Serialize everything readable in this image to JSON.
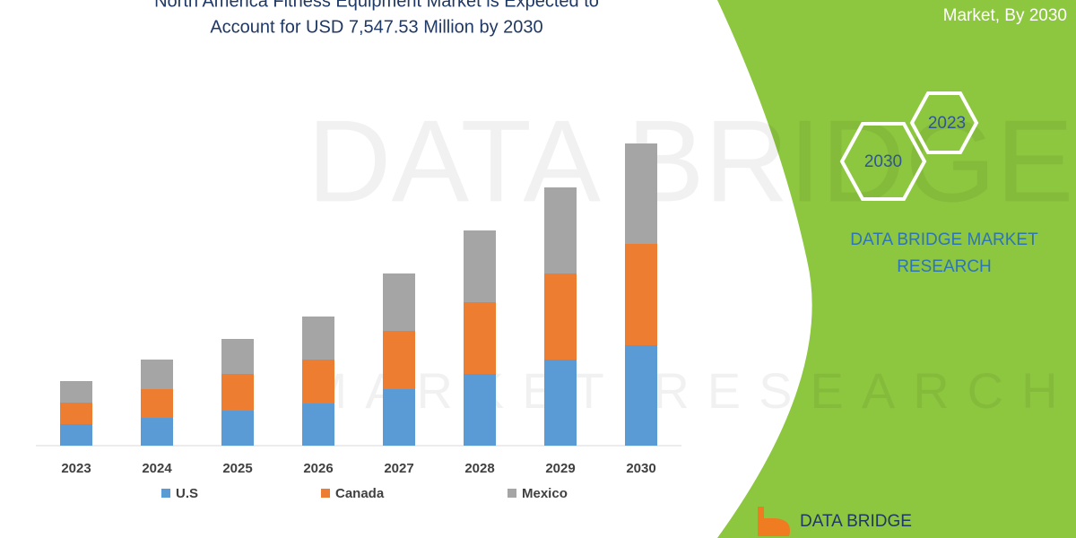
{
  "chart_data": {
    "type": "bar",
    "stacked": true,
    "title": [
      "North America Fitness Equipment Market is Expected to",
      "Account for USD 7,547.53 Million by 2030"
    ],
    "categories": [
      "2023",
      "2024",
      "2025",
      "2026",
      "2027",
      "2028",
      "2029",
      "2030"
    ],
    "series": [
      {
        "name": "U.S",
        "color": "#5b9bd5",
        "values": [
          24,
          31,
          39,
          47,
          63,
          80,
          96,
          112
        ]
      },
      {
        "name": "Canada",
        "color": "#ed7d31",
        "values": [
          24,
          32,
          41,
          49,
          65,
          80,
          96,
          113
        ]
      },
      {
        "name": "Mexico",
        "color": "#a5a5a5",
        "values": [
          24,
          33,
          39,
          48,
          64,
          80,
          96,
          112
        ]
      }
    ],
    "ylim": [
      0,
      360
    ]
  },
  "panel": {
    "heading": "Market, By 2030",
    "hexagons": [
      "2023",
      "2030"
    ],
    "brand": [
      "DATA BRIDGE MARKET",
      "RESEARCH"
    ],
    "logo": "DATA BRIDGE"
  },
  "watermark": [
    "DATA BRIDGE",
    "MARKET RESEARCH"
  ]
}
